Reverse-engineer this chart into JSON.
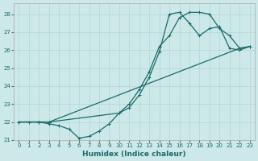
{
  "xlabel": "Humidex (Indice chaleur)",
  "xlim": [
    -0.5,
    23.5
  ],
  "ylim": [
    21,
    28.6
  ],
  "yticks": [
    21,
    22,
    23,
    24,
    25,
    26,
    27,
    28
  ],
  "xticks": [
    0,
    1,
    2,
    3,
    4,
    5,
    6,
    7,
    8,
    9,
    10,
    11,
    12,
    13,
    14,
    15,
    16,
    17,
    18,
    19,
    20,
    21,
    22,
    23
  ],
  "bg_color": "#cce8e8",
  "grid_color": "#b8d8d8",
  "line_color": "#1a6b6b",
  "line1_x": [
    0,
    1,
    2,
    3,
    4,
    5,
    6,
    7,
    8,
    9,
    10,
    11,
    12,
    13,
    14,
    15,
    16,
    17,
    18,
    19,
    20,
    21,
    22,
    23
  ],
  "line1_y": [
    22,
    22,
    22,
    21.9,
    21.8,
    21.6,
    21.1,
    21.2,
    21.5,
    21.9,
    22.5,
    22.8,
    23.5,
    24.5,
    25.9,
    28.0,
    28.1,
    27.5,
    26.8,
    27.2,
    27.3,
    26.1,
    26.0,
    26.2
  ],
  "line2_x": [
    0,
    2,
    3,
    10,
    11,
    12,
    13,
    14,
    15,
    16,
    17,
    18,
    19,
    20,
    21,
    22,
    23
  ],
  "line2_y": [
    22,
    22,
    22,
    22.5,
    23.0,
    23.8,
    24.8,
    26.2,
    26.8,
    27.8,
    28.1,
    28.1,
    28.0,
    27.2,
    26.8,
    26.1,
    26.2
  ],
  "line3_x": [
    0,
    2,
    3,
    22,
    23
  ],
  "line3_y": [
    22,
    22,
    22,
    26.1,
    26.2
  ]
}
